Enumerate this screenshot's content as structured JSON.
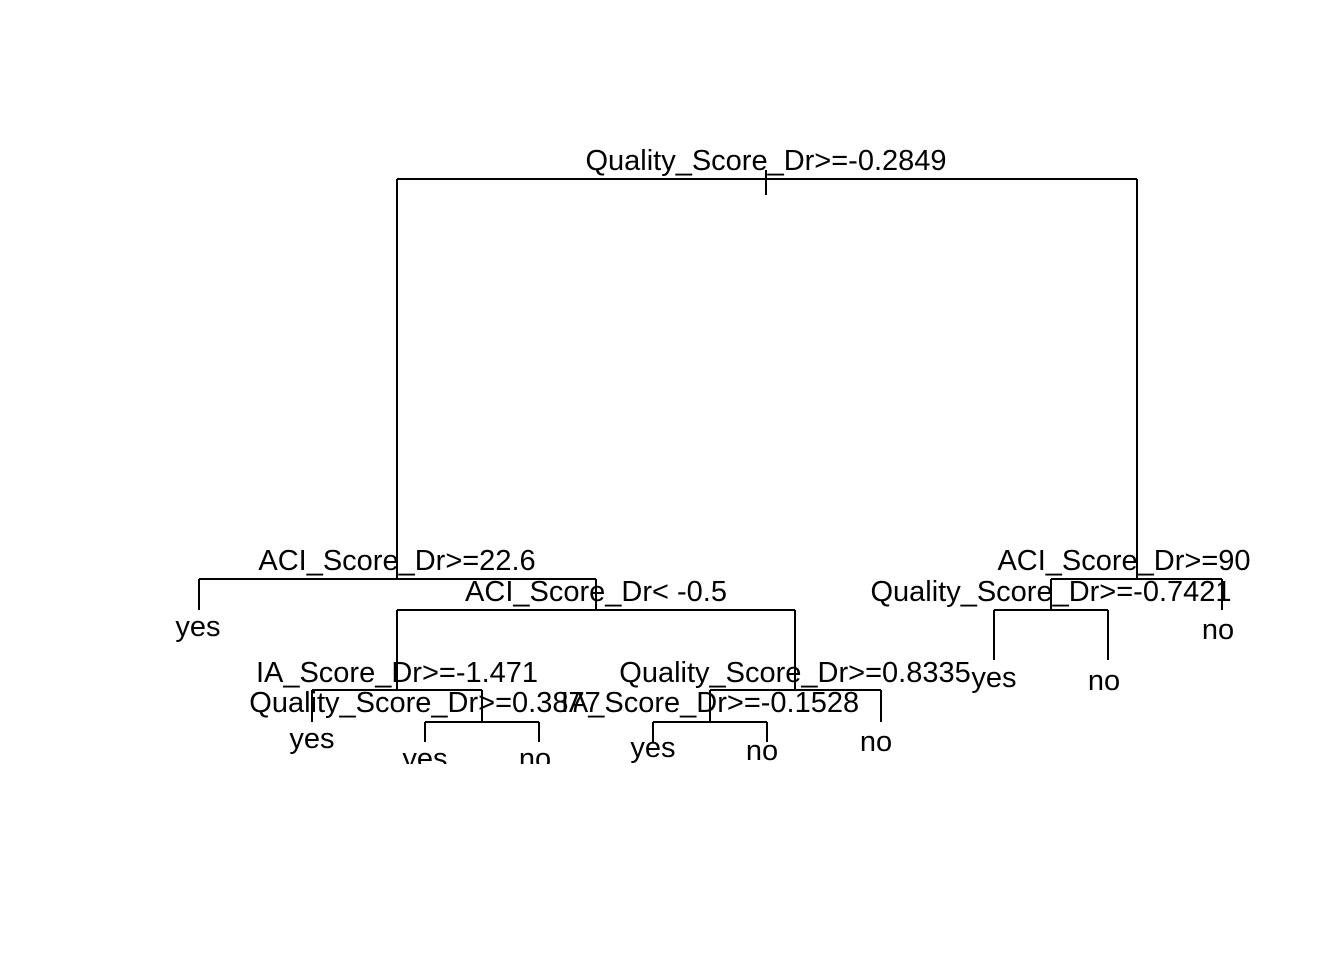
{
  "tree": {
    "root": {
      "split": "Quality_Score_Dr>=-0.2849",
      "left": {
        "split": "ACI_Score_Dr>=22.6",
        "left": {
          "leaf": "yes"
        },
        "right": {
          "split": "ACI_Score_Dr< -0.5",
          "left": {
            "split": "IA_Score_Dr>=-1.471",
            "left": {
              "leaf": "yes"
            },
            "right": {
              "split": "Quality_Score_Dr>=0.3877",
              "left": {
                "leaf": "yes"
              },
              "right": {
                "leaf": "no"
              }
            }
          },
          "right": {
            "split": "Quality_Score_Dr>=0.8335",
            "left": {
              "split": "IA_Score_Dr>=-0.1528",
              "left": {
                "leaf": "yes"
              },
              "right": {
                "leaf": "no"
              }
            },
            "right": {
              "leaf": "no"
            }
          }
        }
      },
      "right": {
        "split": "ACI_Score_Dr>=90",
        "left": {
          "split": "Quality_Score_Dr>=-0.7421",
          "left": {
            "leaf": "yes"
          },
          "right": {
            "leaf": "no"
          }
        },
        "right": {
          "leaf": "no"
        }
      }
    }
  }
}
